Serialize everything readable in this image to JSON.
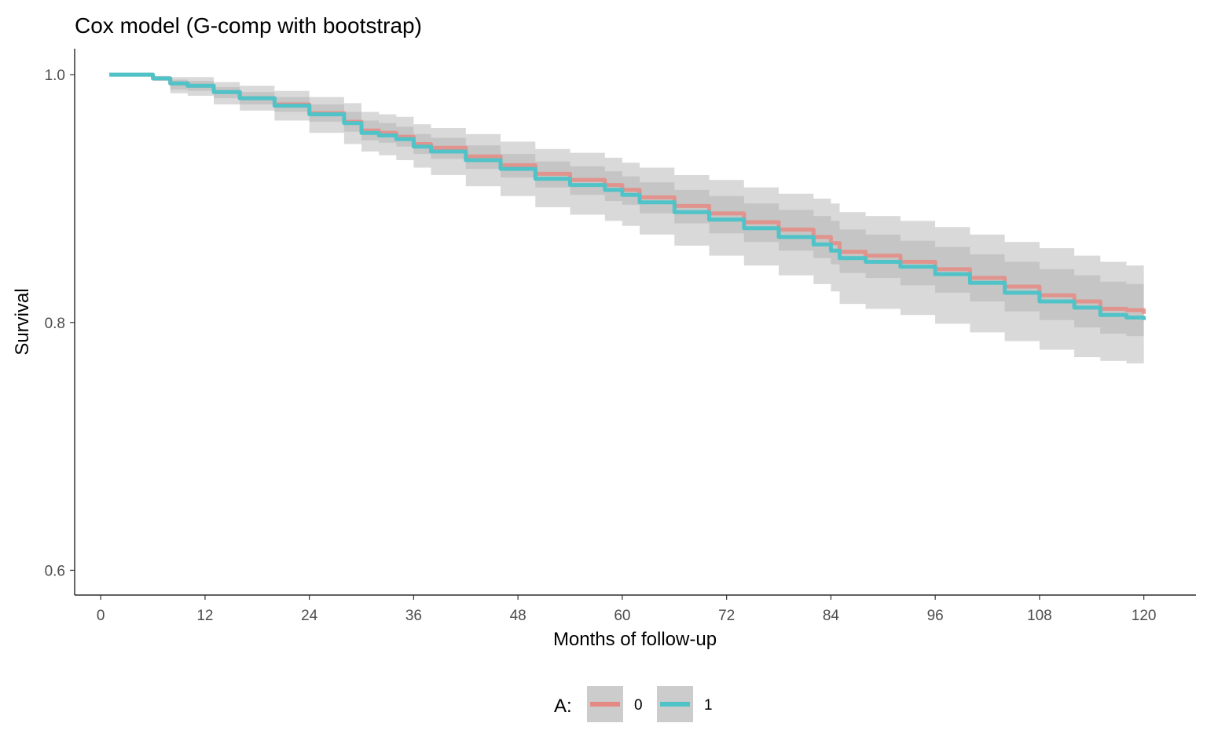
{
  "chart_data": {
    "type": "line",
    "title": "Cox model (G-comp with bootstrap)",
    "xlabel": "Months of follow-up",
    "ylabel": "Survival",
    "xlim": [
      -3,
      126
    ],
    "ylim": [
      0.58,
      1.021
    ],
    "x_ticks": [
      0,
      12,
      24,
      36,
      48,
      60,
      72,
      84,
      96,
      108,
      120
    ],
    "x_tick_labels": [
      "0",
      "12",
      "24",
      "36",
      "48",
      "60",
      "72",
      "84",
      "96",
      "108",
      "120"
    ],
    "y_ticks": [
      0.6,
      0.8,
      1.0
    ],
    "y_tick_labels": [
      "0.6",
      "0.8",
      "1.0"
    ],
    "grid": false,
    "legend": {
      "title": "A:",
      "position": "bottom",
      "entries": [
        "0",
        "1"
      ]
    },
    "series": [
      {
        "name": "0",
        "color": "#e58a82",
        "ribbon_color": "#bdbdbd",
        "x": [
          1,
          6,
          8,
          10,
          13,
          16,
          20,
          24,
          28,
          30,
          32,
          34,
          36,
          38,
          42,
          46,
          50,
          54,
          58,
          60,
          62,
          66,
          70,
          74,
          78,
          82,
          84,
          85,
          88,
          92,
          96,
          100,
          104,
          108,
          112,
          115,
          118,
          120
        ],
        "values": [
          1.0,
          0.997,
          0.993,
          0.991,
          0.986,
          0.981,
          0.976,
          0.969,
          0.962,
          0.955,
          0.953,
          0.95,
          0.944,
          0.941,
          0.934,
          0.927,
          0.92,
          0.915,
          0.911,
          0.907,
          0.901,
          0.894,
          0.888,
          0.881,
          0.875,
          0.869,
          0.864,
          0.857,
          0.854,
          0.849,
          0.843,
          0.836,
          0.829,
          0.822,
          0.817,
          0.811,
          0.81,
          0.807
        ],
        "lower": [
          1.0,
          0.996,
          0.988,
          0.987,
          0.981,
          0.976,
          0.97,
          0.962,
          0.954,
          0.947,
          0.945,
          0.942,
          0.936,
          0.932,
          0.924,
          0.917,
          0.909,
          0.903,
          0.898,
          0.895,
          0.888,
          0.88,
          0.872,
          0.865,
          0.858,
          0.852,
          0.847,
          0.84,
          0.836,
          0.83,
          0.824,
          0.817,
          0.809,
          0.802,
          0.796,
          0.791,
          0.789,
          0.787
        ],
        "upper": [
          1.0,
          0.998,
          0.996,
          0.995,
          0.99,
          0.986,
          0.982,
          0.976,
          0.97,
          0.963,
          0.961,
          0.958,
          0.952,
          0.949,
          0.943,
          0.936,
          0.93,
          0.926,
          0.922,
          0.918,
          0.913,
          0.907,
          0.902,
          0.896,
          0.891,
          0.886,
          0.882,
          0.875,
          0.871,
          0.866,
          0.861,
          0.855,
          0.849,
          0.843,
          0.838,
          0.833,
          0.831,
          0.827
        ]
      },
      {
        "name": "1",
        "color": "#4fc3c7",
        "ribbon_color": "#d9d9d9",
        "x": [
          1,
          6,
          8,
          10,
          13,
          16,
          20,
          24,
          28,
          30,
          32,
          34,
          36,
          38,
          42,
          46,
          50,
          54,
          58,
          60,
          62,
          66,
          70,
          74,
          78,
          82,
          84,
          85,
          88,
          92,
          96,
          100,
          104,
          108,
          112,
          115,
          118,
          120
        ],
        "values": [
          1.0,
          0.997,
          0.993,
          0.991,
          0.986,
          0.981,
          0.975,
          0.968,
          0.961,
          0.953,
          0.951,
          0.948,
          0.942,
          0.938,
          0.931,
          0.924,
          0.916,
          0.911,
          0.907,
          0.903,
          0.897,
          0.889,
          0.883,
          0.876,
          0.869,
          0.863,
          0.858,
          0.852,
          0.849,
          0.845,
          0.839,
          0.832,
          0.824,
          0.817,
          0.812,
          0.806,
          0.804,
          0.802
        ],
        "lower": [
          1.0,
          0.995,
          0.985,
          0.983,
          0.976,
          0.971,
          0.963,
          0.953,
          0.944,
          0.938,
          0.935,
          0.931,
          0.925,
          0.919,
          0.91,
          0.902,
          0.893,
          0.887,
          0.882,
          0.878,
          0.871,
          0.862,
          0.854,
          0.846,
          0.838,
          0.831,
          0.825,
          0.815,
          0.811,
          0.806,
          0.799,
          0.792,
          0.785,
          0.778,
          0.772,
          0.769,
          0.767,
          0.766
        ],
        "upper": [
          1.0,
          0.999,
          0.998,
          0.998,
          0.994,
          0.991,
          0.987,
          0.982,
          0.977,
          0.97,
          0.968,
          0.966,
          0.96,
          0.957,
          0.952,
          0.946,
          0.94,
          0.937,
          0.933,
          0.929,
          0.925,
          0.919,
          0.915,
          0.909,
          0.904,
          0.9,
          0.896,
          0.889,
          0.886,
          0.882,
          0.877,
          0.871,
          0.865,
          0.86,
          0.854,
          0.849,
          0.846,
          0.838
        ]
      }
    ]
  }
}
